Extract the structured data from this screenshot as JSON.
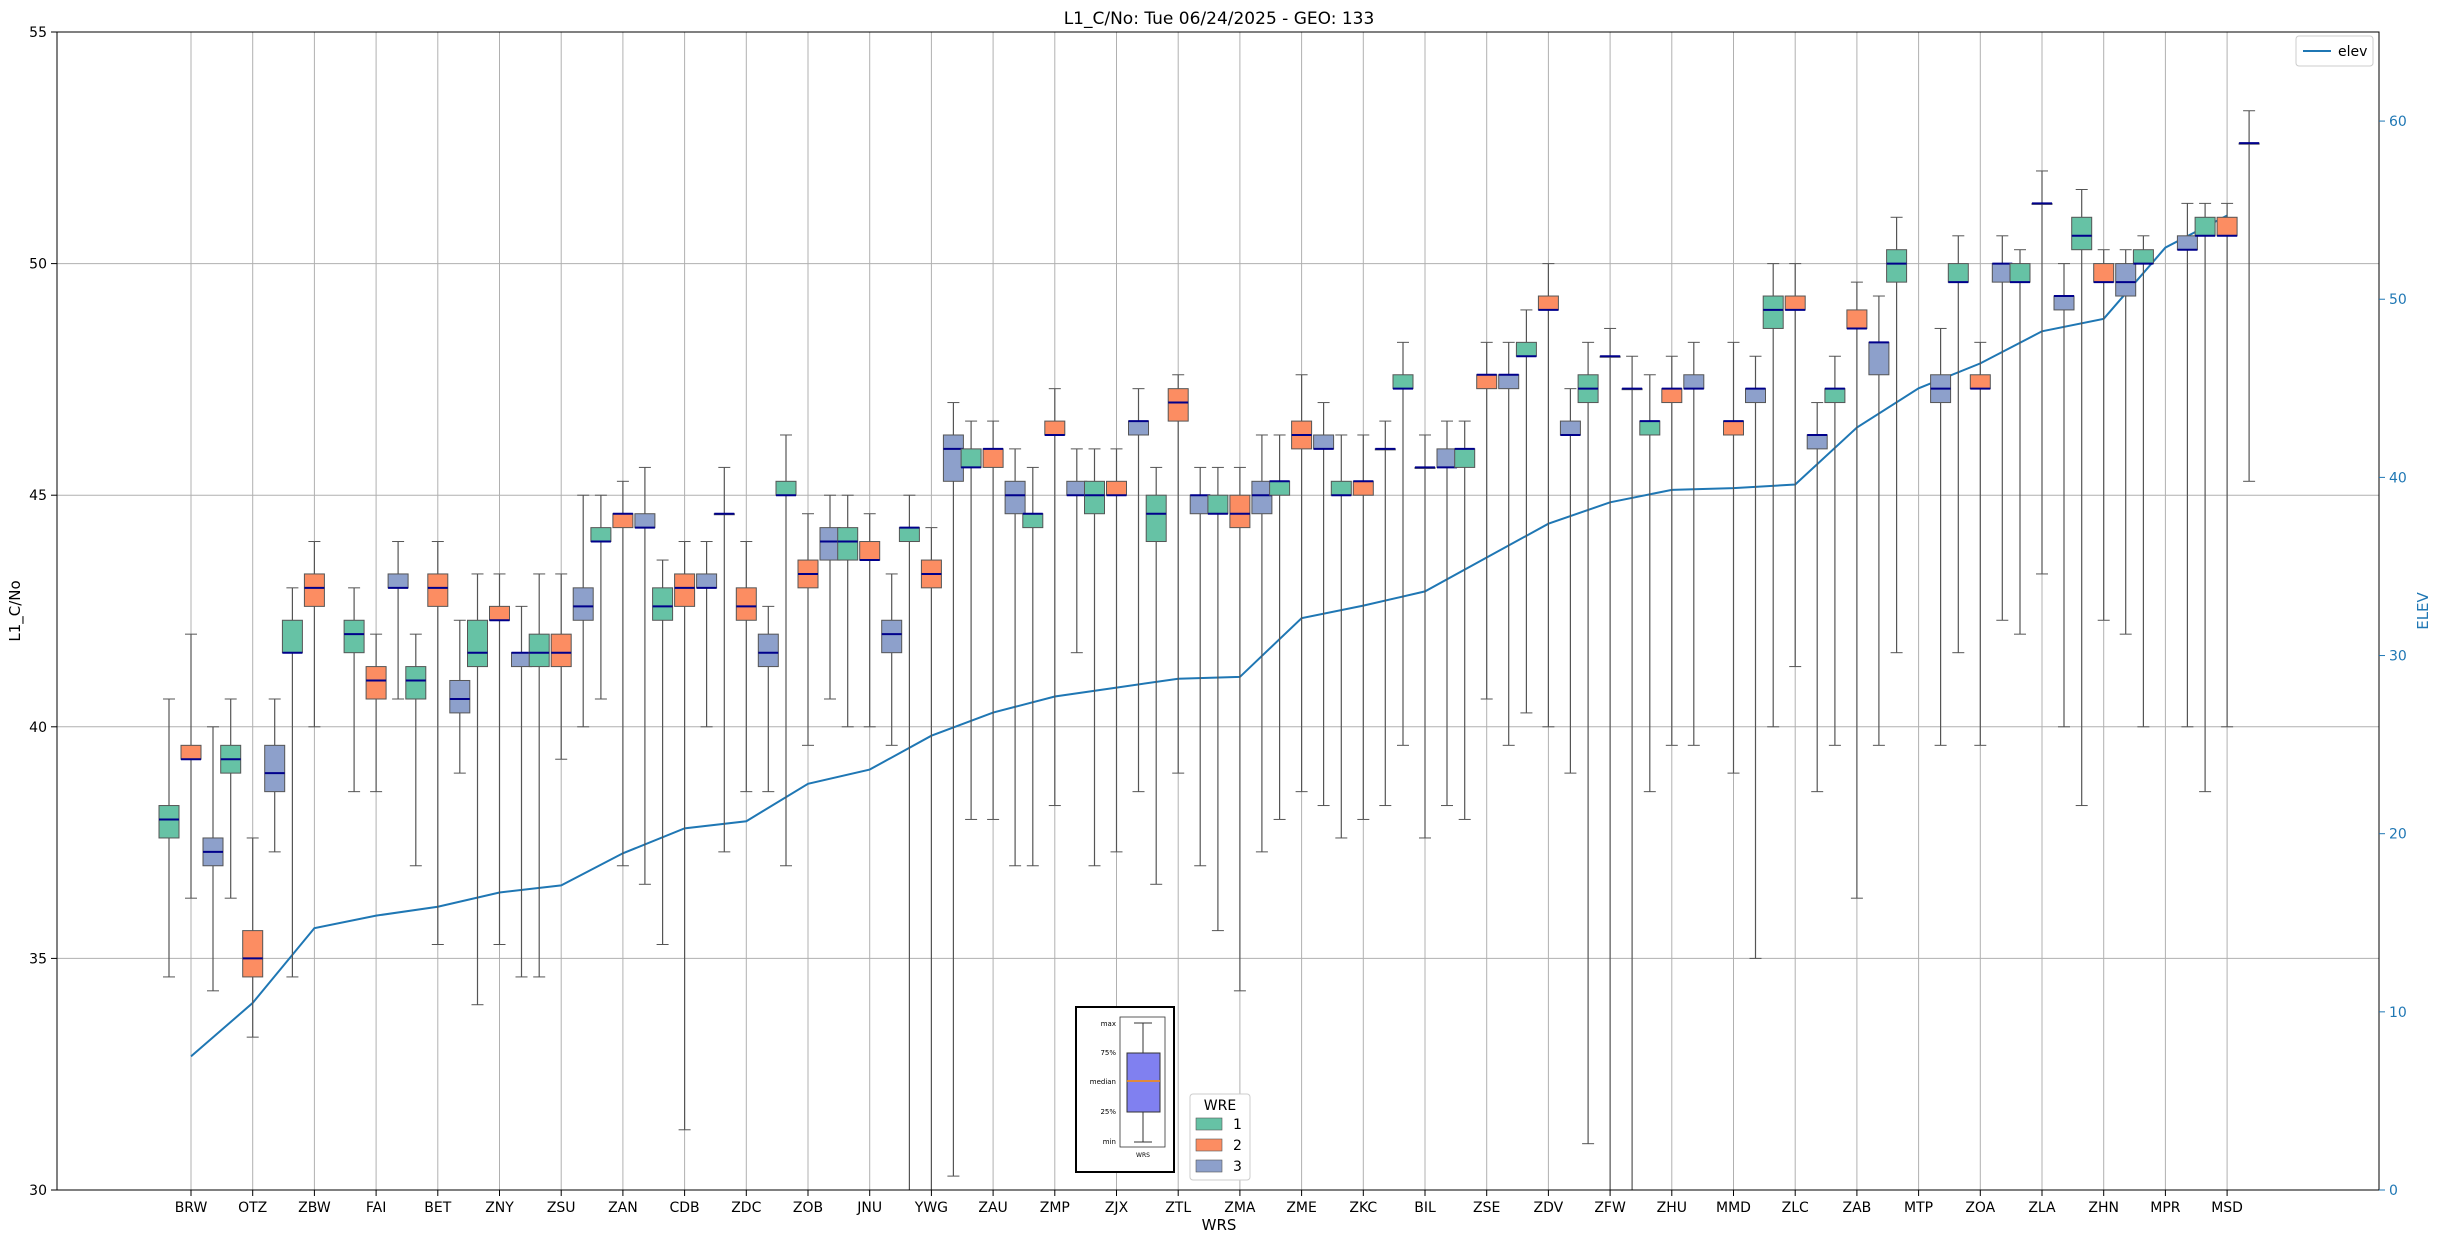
{
  "chart_data": {
    "type": "box",
    "title": "L1_C/No: Tue 06/24/2025 - GEO: 133",
    "xlabel": "WRS",
    "ylabel": "L1_C/No",
    "y2label": "ELEV",
    "ylim": [
      30,
      55
    ],
    "y2lim": [
      0,
      65
    ],
    "yticks": [
      30,
      35,
      40,
      45,
      50,
      55
    ],
    "y2ticks": [
      0,
      10,
      20,
      30,
      40,
      50,
      60
    ],
    "grid": true,
    "legend": {
      "title": "WRE",
      "placement": "bottom-center",
      "entries": [
        "1",
        "2",
        "3"
      ]
    },
    "line_legend": {
      "label": "elev",
      "placement": "top-right"
    },
    "inset_labels": [
      "max",
      "75%",
      "median",
      "25%",
      "min",
      "WRS"
    ],
    "colors": {
      "1": "#66c2a5",
      "2": "#fc8d62",
      "3": "#8da0cb",
      "median": "#00008b",
      "whisker": "#555555",
      "elev": "#1f77b4",
      "inset_box": "#8080f0",
      "inset_median": "#ff8c00"
    },
    "categories": [
      "BRW",
      "OTZ",
      "ZBW",
      "FAI",
      "BET",
      "ZNY",
      "ZSU",
      "ZAN",
      "CDB",
      "ZDC",
      "ZOB",
      "JNU",
      "YWG",
      "ZAU",
      "ZMP",
      "ZJX",
      "ZTL",
      "ZMA",
      "ZME",
      "ZKC",
      "BIL",
      "ZSE",
      "ZDV",
      "ZFW",
      "ZHU",
      "MMD",
      "ZLC",
      "ZAB",
      "MTP",
      "ZOA",
      "ZLA",
      "ZHN",
      "MPR",
      "MSD"
    ],
    "elev_series": {
      "name": "elev",
      "values": [
        7.5,
        10.5,
        14.7,
        15.4,
        15.9,
        16.7,
        17.1,
        18.9,
        20.3,
        20.7,
        22.8,
        23.6,
        25.5,
        26.8,
        27.7,
        28.2,
        28.7,
        28.8,
        32.1,
        32.8,
        33.6,
        35.5,
        37.4,
        38.6,
        39.3,
        39.4,
        39.6,
        42.8,
        45.0,
        46.4,
        48.2,
        48.9,
        52.9,
        54.7
      ]
    },
    "boxes": [
      {
        "wrs": "BRW",
        "wre": 1,
        "min": 34.6,
        "q1": 37.6,
        "median": 38.0,
        "q3": 38.3,
        "max": 40.6
      },
      {
        "wrs": "BRW",
        "wre": 2,
        "min": 36.3,
        "q1": 39.3,
        "median": 39.3,
        "q3": 39.6,
        "max": 42.0
      },
      {
        "wrs": "BRW",
        "wre": 3,
        "min": 34.3,
        "q1": 37.0,
        "median": 37.3,
        "q3": 37.6,
        "max": 40.0
      },
      {
        "wrs": "OTZ",
        "wre": 1,
        "min": 36.3,
        "q1": 39.0,
        "median": 39.3,
        "q3": 39.6,
        "max": 40.6
      },
      {
        "wrs": "OTZ",
        "wre": 2,
        "min": 33.3,
        "q1": 34.6,
        "median": 35.0,
        "q3": 35.6,
        "max": 37.6
      },
      {
        "wrs": "OTZ",
        "wre": 3,
        "min": 37.3,
        "q1": 38.6,
        "median": 39.0,
        "q3": 39.6,
        "max": 40.6
      },
      {
        "wrs": "ZBW",
        "wre": 1,
        "min": 34.6,
        "q1": 41.6,
        "median": 41.6,
        "q3": 42.3,
        "max": 43.0
      },
      {
        "wrs": "ZBW",
        "wre": 2,
        "min": 40.0,
        "q1": 42.6,
        "median": 43.0,
        "q3": 43.3,
        "max": 44.0
      },
      {
        "wrs": "FAI",
        "wre": 1,
        "min": 38.6,
        "q1": 41.6,
        "median": 42.0,
        "q3": 42.3,
        "max": 43.0
      },
      {
        "wrs": "FAI",
        "wre": 2,
        "min": 38.6,
        "q1": 40.6,
        "median": 41.0,
        "q3": 41.3,
        "max": 42.0
      },
      {
        "wrs": "FAI",
        "wre": 3,
        "min": 40.6,
        "q1": 43.0,
        "median": 43.0,
        "q3": 43.3,
        "max": 44.0
      },
      {
        "wrs": "BET",
        "wre": 2,
        "min": 35.3,
        "q1": 42.6,
        "median": 43.0,
        "q3": 43.3,
        "max": 44.0
      },
      {
        "wrs": "BET",
        "wre": 1,
        "min": 37.0,
        "q1": 40.6,
        "median": 41.0,
        "q3": 41.3,
        "max": 42.0
      },
      {
        "wrs": "BET",
        "wre": 3,
        "min": 39.0,
        "q1": 40.3,
        "median": 40.6,
        "q3": 41.0,
        "max": 42.3
      },
      {
        "wrs": "ZNY",
        "wre": 1,
        "min": 34.0,
        "q1": 41.3,
        "median": 41.6,
        "q3": 42.3,
        "max": 43.3
      },
      {
        "wrs": "ZNY",
        "wre": 2,
        "min": 35.3,
        "q1": 42.3,
        "median": 42.3,
        "q3": 42.6,
        "max": 43.3
      },
      {
        "wrs": "ZNY",
        "wre": 3,
        "min": 34.6,
        "q1": 41.3,
        "median": 41.6,
        "q3": 41.6,
        "max": 42.6
      },
      {
        "wrs": "ZSU",
        "wre": 1,
        "min": 34.6,
        "q1": 41.3,
        "median": 41.6,
        "q3": 42.0,
        "max": 43.3
      },
      {
        "wrs": "ZSU",
        "wre": 2,
        "min": 39.3,
        "q1": 41.3,
        "median": 41.6,
        "q3": 42.0,
        "max": 43.3
      },
      {
        "wrs": "ZSU",
        "wre": 3,
        "min": 40.0,
        "q1": 42.3,
        "median": 42.6,
        "q3": 43.0,
        "max": 45.0
      },
      {
        "wrs": "ZAN",
        "wre": 1,
        "min": 40.6,
        "q1": 44.0,
        "median": 44.0,
        "q3": 44.3,
        "max": 45.0
      },
      {
        "wrs": "ZAN",
        "wre": 2,
        "min": 37.0,
        "q1": 44.3,
        "median": 44.6,
        "q3": 44.6,
        "max": 45.3
      },
      {
        "wrs": "ZAN",
        "wre": 3,
        "min": 36.6,
        "q1": 44.3,
        "median": 44.3,
        "q3": 44.6,
        "max": 45.6
      },
      {
        "wrs": "CDB",
        "wre": 1,
        "min": 35.3,
        "q1": 42.3,
        "median": 42.6,
        "q3": 43.0,
        "max": 43.6
      },
      {
        "wrs": "CDB",
        "wre": 2,
        "min": 31.3,
        "q1": 42.6,
        "median": 43.0,
        "q3": 43.3,
        "max": 44.0
      },
      {
        "wrs": "CDB",
        "wre": 3,
        "min": 40.0,
        "q1": 43.0,
        "median": 43.0,
        "q3": 43.3,
        "max": 44.0
      },
      {
        "wrs": "ZDC",
        "wre": 2,
        "min": 38.6,
        "q1": 42.3,
        "median": 42.6,
        "q3": 43.0,
        "max": 44.0
      },
      {
        "wrs": "ZDC",
        "wre": 3,
        "min": 38.6,
        "q1": 41.3,
        "median": 41.6,
        "q3": 42.0,
        "max": 42.6
      },
      {
        "wrs": "ZDC",
        "wre": 1,
        "min": 37.3,
        "q1": 44.6,
        "median": 44.6,
        "q3": 44.6,
        "max": 45.6
      },
      {
        "wrs": "ZOB",
        "wre": 1,
        "min": 37.0,
        "q1": 45.0,
        "median": 45.0,
        "q3": 45.3,
        "max": 46.3
      },
      {
        "wrs": "ZOB",
        "wre": 2,
        "min": 39.6,
        "q1": 43.0,
        "median": 43.3,
        "q3": 43.6,
        "max": 44.6
      },
      {
        "wrs": "ZOB",
        "wre": 3,
        "min": 40.6,
        "q1": 43.6,
        "median": 44.0,
        "q3": 44.3,
        "max": 45.0
      },
      {
        "wrs": "JNU",
        "wre": 1,
        "min": 40.0,
        "q1": 43.6,
        "median": 44.0,
        "q3": 44.3,
        "max": 45.0
      },
      {
        "wrs": "JNU",
        "wre": 2,
        "min": 40.0,
        "q1": 43.6,
        "median": 43.6,
        "q3": 44.0,
        "max": 44.6
      },
      {
        "wrs": "JNU",
        "wre": 3,
        "min": 39.6,
        "q1": 41.6,
        "median": 42.0,
        "q3": 42.3,
        "max": 43.3
      },
      {
        "wrs": "YWG",
        "wre": 1,
        "min": 30.0,
        "q1": 44.0,
        "median": 44.3,
        "q3": 44.3,
        "max": 45.0
      },
      {
        "wrs": "YWG",
        "wre": 2,
        "min": 30.0,
        "q1": 43.0,
        "median": 43.3,
        "q3": 43.6,
        "max": 44.3
      },
      {
        "wrs": "YWG",
        "wre": 3,
        "min": 30.3,
        "q1": 45.3,
        "median": 46.0,
        "q3": 46.3,
        "max": 47.0
      },
      {
        "wrs": "ZAU",
        "wre": 1,
        "min": 38.0,
        "q1": 45.6,
        "median": 45.6,
        "q3": 46.0,
        "max": 46.6
      },
      {
        "wrs": "ZAU",
        "wre": 2,
        "min": 38.0,
        "q1": 45.6,
        "median": 46.0,
        "q3": 46.0,
        "max": 46.6
      },
      {
        "wrs": "ZAU",
        "wre": 3,
        "min": 37.0,
        "q1": 44.6,
        "median": 45.0,
        "q3": 45.3,
        "max": 46.0
      },
      {
        "wrs": "ZMP",
        "wre": 1,
        "min": 37.0,
        "q1": 44.3,
        "median": 44.6,
        "q3": 44.6,
        "max": 45.6
      },
      {
        "wrs": "ZMP",
        "wre": 2,
        "min": 38.3,
        "q1": 46.3,
        "median": 46.3,
        "q3": 46.6,
        "max": 47.3
      },
      {
        "wrs": "ZMP",
        "wre": 3,
        "min": 41.6,
        "q1": 45.0,
        "median": 45.0,
        "q3": 45.3,
        "max": 46.0
      },
      {
        "wrs": "ZJX",
        "wre": 1,
        "min": 37.0,
        "q1": 44.6,
        "median": 45.0,
        "q3": 45.3,
        "max": 46.0
      },
      {
        "wrs": "ZJX",
        "wre": 2,
        "min": 37.3,
        "q1": 45.0,
        "median": 45.0,
        "q3": 45.3,
        "max": 46.0
      },
      {
        "wrs": "ZJX",
        "wre": 3,
        "min": 38.6,
        "q1": 46.3,
        "median": 46.6,
        "q3": 46.6,
        "max": 47.3
      },
      {
        "wrs": "ZTL",
        "wre": 1,
        "min": 36.6,
        "q1": 44.0,
        "median": 44.6,
        "q3": 45.0,
        "max": 45.6
      },
      {
        "wrs": "ZTL",
        "wre": 2,
        "min": 39.0,
        "q1": 46.6,
        "median": 47.0,
        "q3": 47.3,
        "max": 47.6
      },
      {
        "wrs": "ZTL",
        "wre": 3,
        "min": 37.0,
        "q1": 44.6,
        "median": 45.0,
        "q3": 45.0,
        "max": 45.6
      },
      {
        "wrs": "ZMA",
        "wre": 1,
        "min": 35.6,
        "q1": 44.6,
        "median": 44.6,
        "q3": 45.0,
        "max": 45.6
      },
      {
        "wrs": "ZMA",
        "wre": 2,
        "min": 34.3,
        "q1": 44.3,
        "median": 44.6,
        "q3": 45.0,
        "max": 45.6
      },
      {
        "wrs": "ZMA",
        "wre": 3,
        "min": 37.3,
        "q1": 44.6,
        "median": 45.0,
        "q3": 45.3,
        "max": 46.3
      },
      {
        "wrs": "ZME",
        "wre": 1,
        "min": 38.0,
        "q1": 45.0,
        "median": 45.3,
        "q3": 45.3,
        "max": 46.3
      },
      {
        "wrs": "ZME",
        "wre": 2,
        "min": 38.6,
        "q1": 46.0,
        "median": 46.3,
        "q3": 46.6,
        "max": 47.6
      },
      {
        "wrs": "ZME",
        "wre": 3,
        "min": 38.3,
        "q1": 46.0,
        "median": 46.0,
        "q3": 46.3,
        "max": 47.0
      },
      {
        "wrs": "ZKC",
        "wre": 1,
        "min": 37.6,
        "q1": 45.0,
        "median": 45.0,
        "q3": 45.3,
        "max": 46.3
      },
      {
        "wrs": "ZKC",
        "wre": 2,
        "min": 38.0,
        "q1": 45.0,
        "median": 45.3,
        "q3": 45.3,
        "max": 46.3
      },
      {
        "wrs": "ZKC",
        "wre": 3,
        "min": 38.3,
        "q1": 46.0,
        "median": 46.0,
        "q3": 46.0,
        "max": 46.6
      },
      {
        "wrs": "BIL",
        "wre": 1,
        "min": 39.6,
        "q1": 47.3,
        "median": 47.3,
        "q3": 47.6,
        "max": 48.3
      },
      {
        "wrs": "BIL",
        "wre": 2,
        "min": 37.6,
        "q1": 45.6,
        "median": 45.6,
        "q3": 45.6,
        "max": 46.3
      },
      {
        "wrs": "BIL",
        "wre": 3,
        "min": 38.3,
        "q1": 45.6,
        "median": 45.6,
        "q3": 46.0,
        "max": 46.6
      },
      {
        "wrs": "ZSE",
        "wre": 1,
        "min": 38.0,
        "q1": 45.6,
        "median": 46.0,
        "q3": 46.0,
        "max": 46.6
      },
      {
        "wrs": "ZSE",
        "wre": 2,
        "min": 40.6,
        "q1": 47.3,
        "median": 47.6,
        "q3": 47.6,
        "max": 48.3
      },
      {
        "wrs": "ZSE",
        "wre": 3,
        "min": 39.6,
        "q1": 47.3,
        "median": 47.6,
        "q3": 47.6,
        "max": 48.3
      },
      {
        "wrs": "ZDV",
        "wre": 1,
        "min": 40.3,
        "q1": 48.0,
        "median": 48.0,
        "q3": 48.3,
        "max": 49.0
      },
      {
        "wrs": "ZDV",
        "wre": 2,
        "min": 40.0,
        "q1": 49.0,
        "median": 49.0,
        "q3": 49.3,
        "max": 50.0
      },
      {
        "wrs": "ZDV",
        "wre": 3,
        "min": 39.0,
        "q1": 46.3,
        "median": 46.3,
        "q3": 46.6,
        "max": 47.3
      },
      {
        "wrs": "ZFW",
        "wre": 1,
        "min": 31.0,
        "q1": 47.0,
        "median": 47.3,
        "q3": 47.6,
        "max": 48.3
      },
      {
        "wrs": "ZFW",
        "wre": 2,
        "min": 30.0,
        "q1": 48.0,
        "median": 48.0,
        "q3": 48.0,
        "max": 48.6
      },
      {
        "wrs": "ZFW",
        "wre": 3,
        "min": 30.0,
        "q1": 47.3,
        "median": 47.3,
        "q3": 47.3,
        "max": 48.0
      },
      {
        "wrs": "ZHU",
        "wre": 1,
        "min": 38.6,
        "q1": 46.3,
        "median": 46.6,
        "q3": 46.6,
        "max": 47.6
      },
      {
        "wrs": "ZHU",
        "wre": 2,
        "min": 39.6,
        "q1": 47.0,
        "median": 47.3,
        "q3": 47.3,
        "max": 48.0
      },
      {
        "wrs": "ZHU",
        "wre": 3,
        "min": 39.6,
        "q1": 47.3,
        "median": 47.3,
        "q3": 47.6,
        "max": 48.3
      },
      {
        "wrs": "MMD",
        "wre": 2,
        "min": 39.0,
        "q1": 46.3,
        "median": 46.6,
        "q3": 46.6,
        "max": 48.3
      },
      {
        "wrs": "MMD",
        "wre": 3,
        "min": 35.0,
        "q1": 47.0,
        "median": 47.3,
        "q3": 47.3,
        "max": 48.0
      },
      {
        "wrs": "ZLC",
        "wre": 1,
        "min": 40.0,
        "q1": 48.6,
        "median": 49.0,
        "q3": 49.3,
        "max": 50.0
      },
      {
        "wrs": "ZLC",
        "wre": 2,
        "min": 41.3,
        "q1": 49.0,
        "median": 49.0,
        "q3": 49.3,
        "max": 50.0
      },
      {
        "wrs": "ZLC",
        "wre": 3,
        "min": 38.6,
        "q1": 46.0,
        "median": 46.3,
        "q3": 46.3,
        "max": 47.0
      },
      {
        "wrs": "ZAB",
        "wre": 1,
        "min": 39.6,
        "q1": 47.0,
        "median": 47.3,
        "q3": 47.3,
        "max": 48.0
      },
      {
        "wrs": "ZAB",
        "wre": 2,
        "min": 36.3,
        "q1": 48.6,
        "median": 48.6,
        "q3": 49.0,
        "max": 49.6
      },
      {
        "wrs": "ZAB",
        "wre": 3,
        "min": 39.6,
        "q1": 47.6,
        "median": 48.3,
        "q3": 48.3,
        "max": 49.3
      },
      {
        "wrs": "MTP",
        "wre": 1,
        "min": 41.6,
        "q1": 49.6,
        "median": 50.0,
        "q3": 50.3,
        "max": 51.0
      },
      {
        "wrs": "MTP",
        "wre": 3,
        "min": 39.6,
        "q1": 47.0,
        "median": 47.3,
        "q3": 47.6,
        "max": 48.6
      },
      {
        "wrs": "ZOA",
        "wre": 1,
        "min": 41.6,
        "q1": 49.6,
        "median": 49.6,
        "q3": 50.0,
        "max": 50.6
      },
      {
        "wrs": "ZOA",
        "wre": 2,
        "min": 39.6,
        "q1": 47.3,
        "median": 47.3,
        "q3": 47.6,
        "max": 48.3
      },
      {
        "wrs": "ZOA",
        "wre": 3,
        "min": 42.3,
        "q1": 49.6,
        "median": 50.0,
        "q3": 50.0,
        "max": 50.6
      },
      {
        "wrs": "ZLA",
        "wre": 1,
        "min": 42.0,
        "q1": 49.6,
        "median": 49.6,
        "q3": 50.0,
        "max": 50.3
      },
      {
        "wrs": "ZLA",
        "wre": 2,
        "min": 43.3,
        "q1": 51.3,
        "median": 51.3,
        "q3": 51.3,
        "max": 52.0
      },
      {
        "wrs": "ZLA",
        "wre": 3,
        "min": 40.0,
        "q1": 49.0,
        "median": 49.3,
        "q3": 49.3,
        "max": 50.0
      },
      {
        "wrs": "ZHN",
        "wre": 1,
        "min": 38.3,
        "q1": 50.3,
        "median": 50.6,
        "q3": 51.0,
        "max": 51.6
      },
      {
        "wrs": "ZHN",
        "wre": 2,
        "min": 42.3,
        "q1": 49.6,
        "median": 49.6,
        "q3": 50.0,
        "max": 50.3
      },
      {
        "wrs": "ZHN",
        "wre": 3,
        "min": 42.0,
        "q1": 49.3,
        "median": 49.6,
        "q3": 50.0,
        "max": 50.3
      },
      {
        "wrs": "MPR",
        "wre": 1,
        "min": 40.0,
        "q1": 50.0,
        "median": 50.0,
        "q3": 50.3,
        "max": 50.6
      },
      {
        "wrs": "MPR",
        "wre": 3,
        "min": 40.0,
        "q1": 50.3,
        "median": 50.3,
        "q3": 50.6,
        "max": 51.3
      },
      {
        "wrs": "MSD",
        "wre": 3,
        "min": 45.3,
        "q1": 52.6,
        "median": 52.6,
        "q3": 52.6,
        "max": 53.3
      },
      {
        "wrs": "MSD",
        "wre": 2,
        "min": 40.0,
        "q1": 50.6,
        "median": 50.6,
        "q3": 51.0,
        "max": 51.3
      },
      {
        "wrs": "MSD",
        "wre": 1,
        "min": 38.6,
        "q1": 50.6,
        "median": 50.6,
        "q3": 51.0,
        "max": 51.3
      }
    ]
  }
}
